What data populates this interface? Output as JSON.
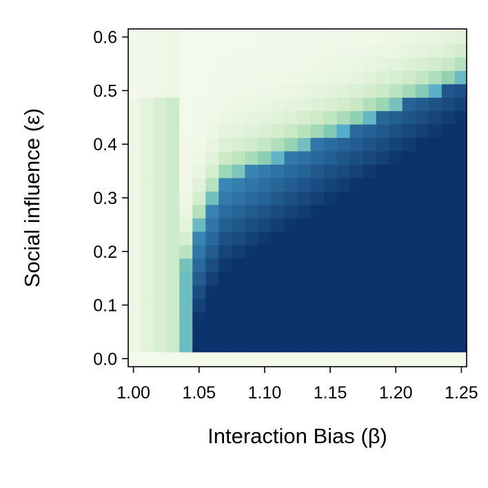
{
  "chart_data": {
    "type": "heatmap",
    "title": "",
    "xlabel": "Interaction Bias (β)",
    "ylabel": "Social influence (ε)",
    "xlim": [
      1.0,
      1.25
    ],
    "ylim": [
      0.0,
      0.6
    ],
    "x_ticks": [
      1.0,
      1.05,
      1.1,
      1.15,
      1.2,
      1.25
    ],
    "x_tick_labels": [
      "1.00",
      "1.05",
      "1.10",
      "1.15",
      "1.20",
      "1.25"
    ],
    "y_ticks": [
      0.0,
      0.1,
      0.2,
      0.3,
      0.4,
      0.5,
      0.6
    ],
    "y_tick_labels": [
      "0.0",
      "0.1",
      "0.2",
      "0.3",
      "0.4",
      "0.5",
      "0.6"
    ],
    "x_step": 0.01,
    "y_step": 0.025,
    "colormap": "GnBu",
    "value_range": [
      0,
      1
    ],
    "colors": {
      "low": "#f3f9eb",
      "mid_light": "#c9e9c4",
      "mid": "#8fd1b0",
      "mid_dark": "#4aa6d0",
      "high": "#0c326b"
    },
    "grid": false,
    "legend": "none",
    "description_of_values": "Approximate cell intensities (0 = lightest, 1 = darkest). Dark region for beta above about 1.04 and epsilon below a boundary rising from about 0.33 at beta 1.07 to about 0.52 at beta 1.25; light above."
  }
}
